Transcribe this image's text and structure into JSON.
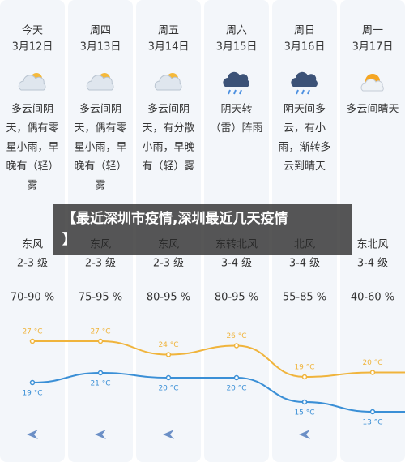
{
  "days": [
    {
      "weekday": "今天",
      "date": "3月12日",
      "desc": [
        "多云间阴",
        "天，偶有零",
        "星小雨，早",
        "晚有（轻）",
        "雾"
      ],
      "wind_dir": "东风",
      "wind_level": "2-3 级",
      "humidity": "70-90 %"
    },
    {
      "weekday": "周四",
      "date": "3月13日",
      "desc": [
        "多云间阴",
        "天，偶有零",
        "星小雨，早",
        "晚有（轻）",
        "雾"
      ],
      "wind_dir": "东风",
      "wind_level": "2-3 级",
      "humidity": "75-95 %"
    },
    {
      "weekday": "周五",
      "date": "3月14日",
      "desc": [
        "多云间阴",
        "天，有分散",
        "小雨，早晚",
        "有（轻）雾"
      ],
      "wind_dir": "东风",
      "wind_level": "2-3 级",
      "humidity": "80-95 %"
    },
    {
      "weekday": "周六",
      "date": "3月15日",
      "desc": [
        "阴天转",
        "（雷）阵雨"
      ],
      "wind_dir": "东转北风",
      "wind_level": "3-4 级",
      "humidity": "80-95 %"
    },
    {
      "weekday": "周日",
      "date": "3月16日",
      "desc": [
        "阴天间多",
        "云，有小",
        "雨，渐转多",
        "云到晴天"
      ],
      "wind_dir": "北风",
      "wind_level": "3-4 级",
      "humidity": "55-85 %"
    },
    {
      "weekday": "周一",
      "date": "3月17日",
      "desc": [
        "多云间晴天"
      ],
      "wind_dir": "东北风",
      "wind_level": "3-4 级",
      "humidity": "40-60 %"
    }
  ],
  "temps": {
    "high": {
      "color": "#f0b43c",
      "values": [
        27,
        27,
        24,
        26,
        19,
        20
      ],
      "value_labels": [
        "27 °C",
        "27 °C",
        "24 °C",
        "26 °C",
        "19 °C",
        "20 °C"
      ]
    },
    "low": {
      "color": "#3a8fd6",
      "values": [
        19,
        21,
        20,
        20,
        15,
        13
      ],
      "value_labels": [
        "19 °C",
        "21 °C",
        "20 °C",
        "20 °C",
        "15 °C",
        "13 °C"
      ]
    }
  },
  "banner": [
    "【最近深圳市疫情,深圳最近几天疫情",
    "】"
  ]
}
